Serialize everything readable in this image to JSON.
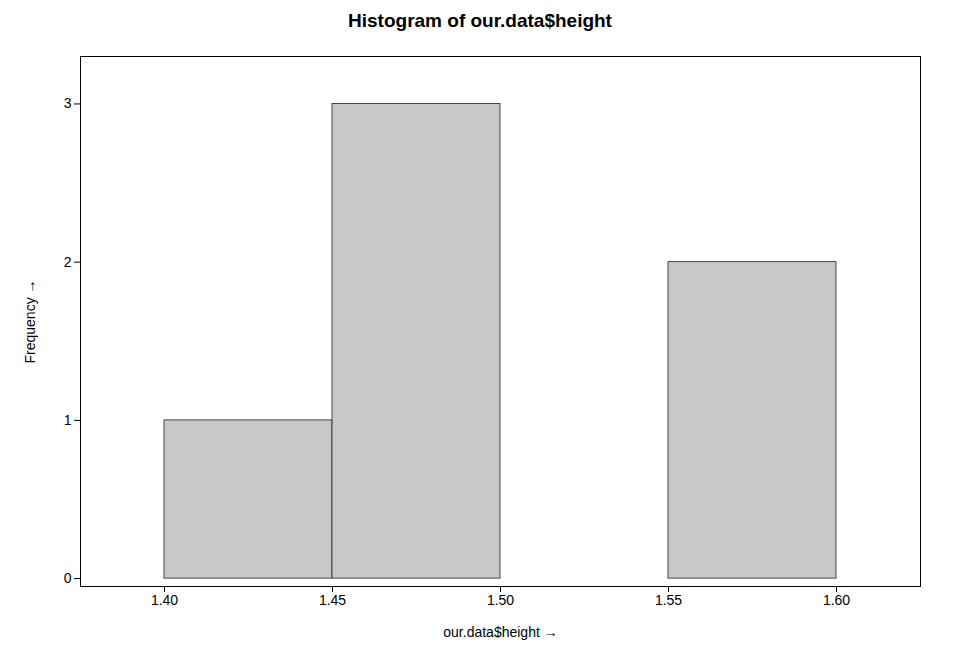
{
  "chart_data": {
    "type": "histogram",
    "title": "Histogram of our.data$height",
    "xlabel": "our.data$height",
    "ylabel": "Frequency",
    "bins": [
      1.4,
      1.45,
      1.5,
      1.55,
      1.6
    ],
    "values": [
      1,
      3,
      0,
      2
    ],
    "color": "#c8c8c8",
    "xlim": [
      1.375,
      1.625
    ],
    "ylim": [
      -0.05,
      3.3
    ],
    "xticks": [
      {
        "value": 1.4,
        "label": "1.40"
      },
      1.45,
      {
        "value": 1.5,
        "label": "1.50"
      },
      1.55,
      {
        "value": 1.6,
        "label": "1.60"
      }
    ],
    "yticks": [
      0,
      1,
      2,
      3
    ],
    "grid": false
  }
}
